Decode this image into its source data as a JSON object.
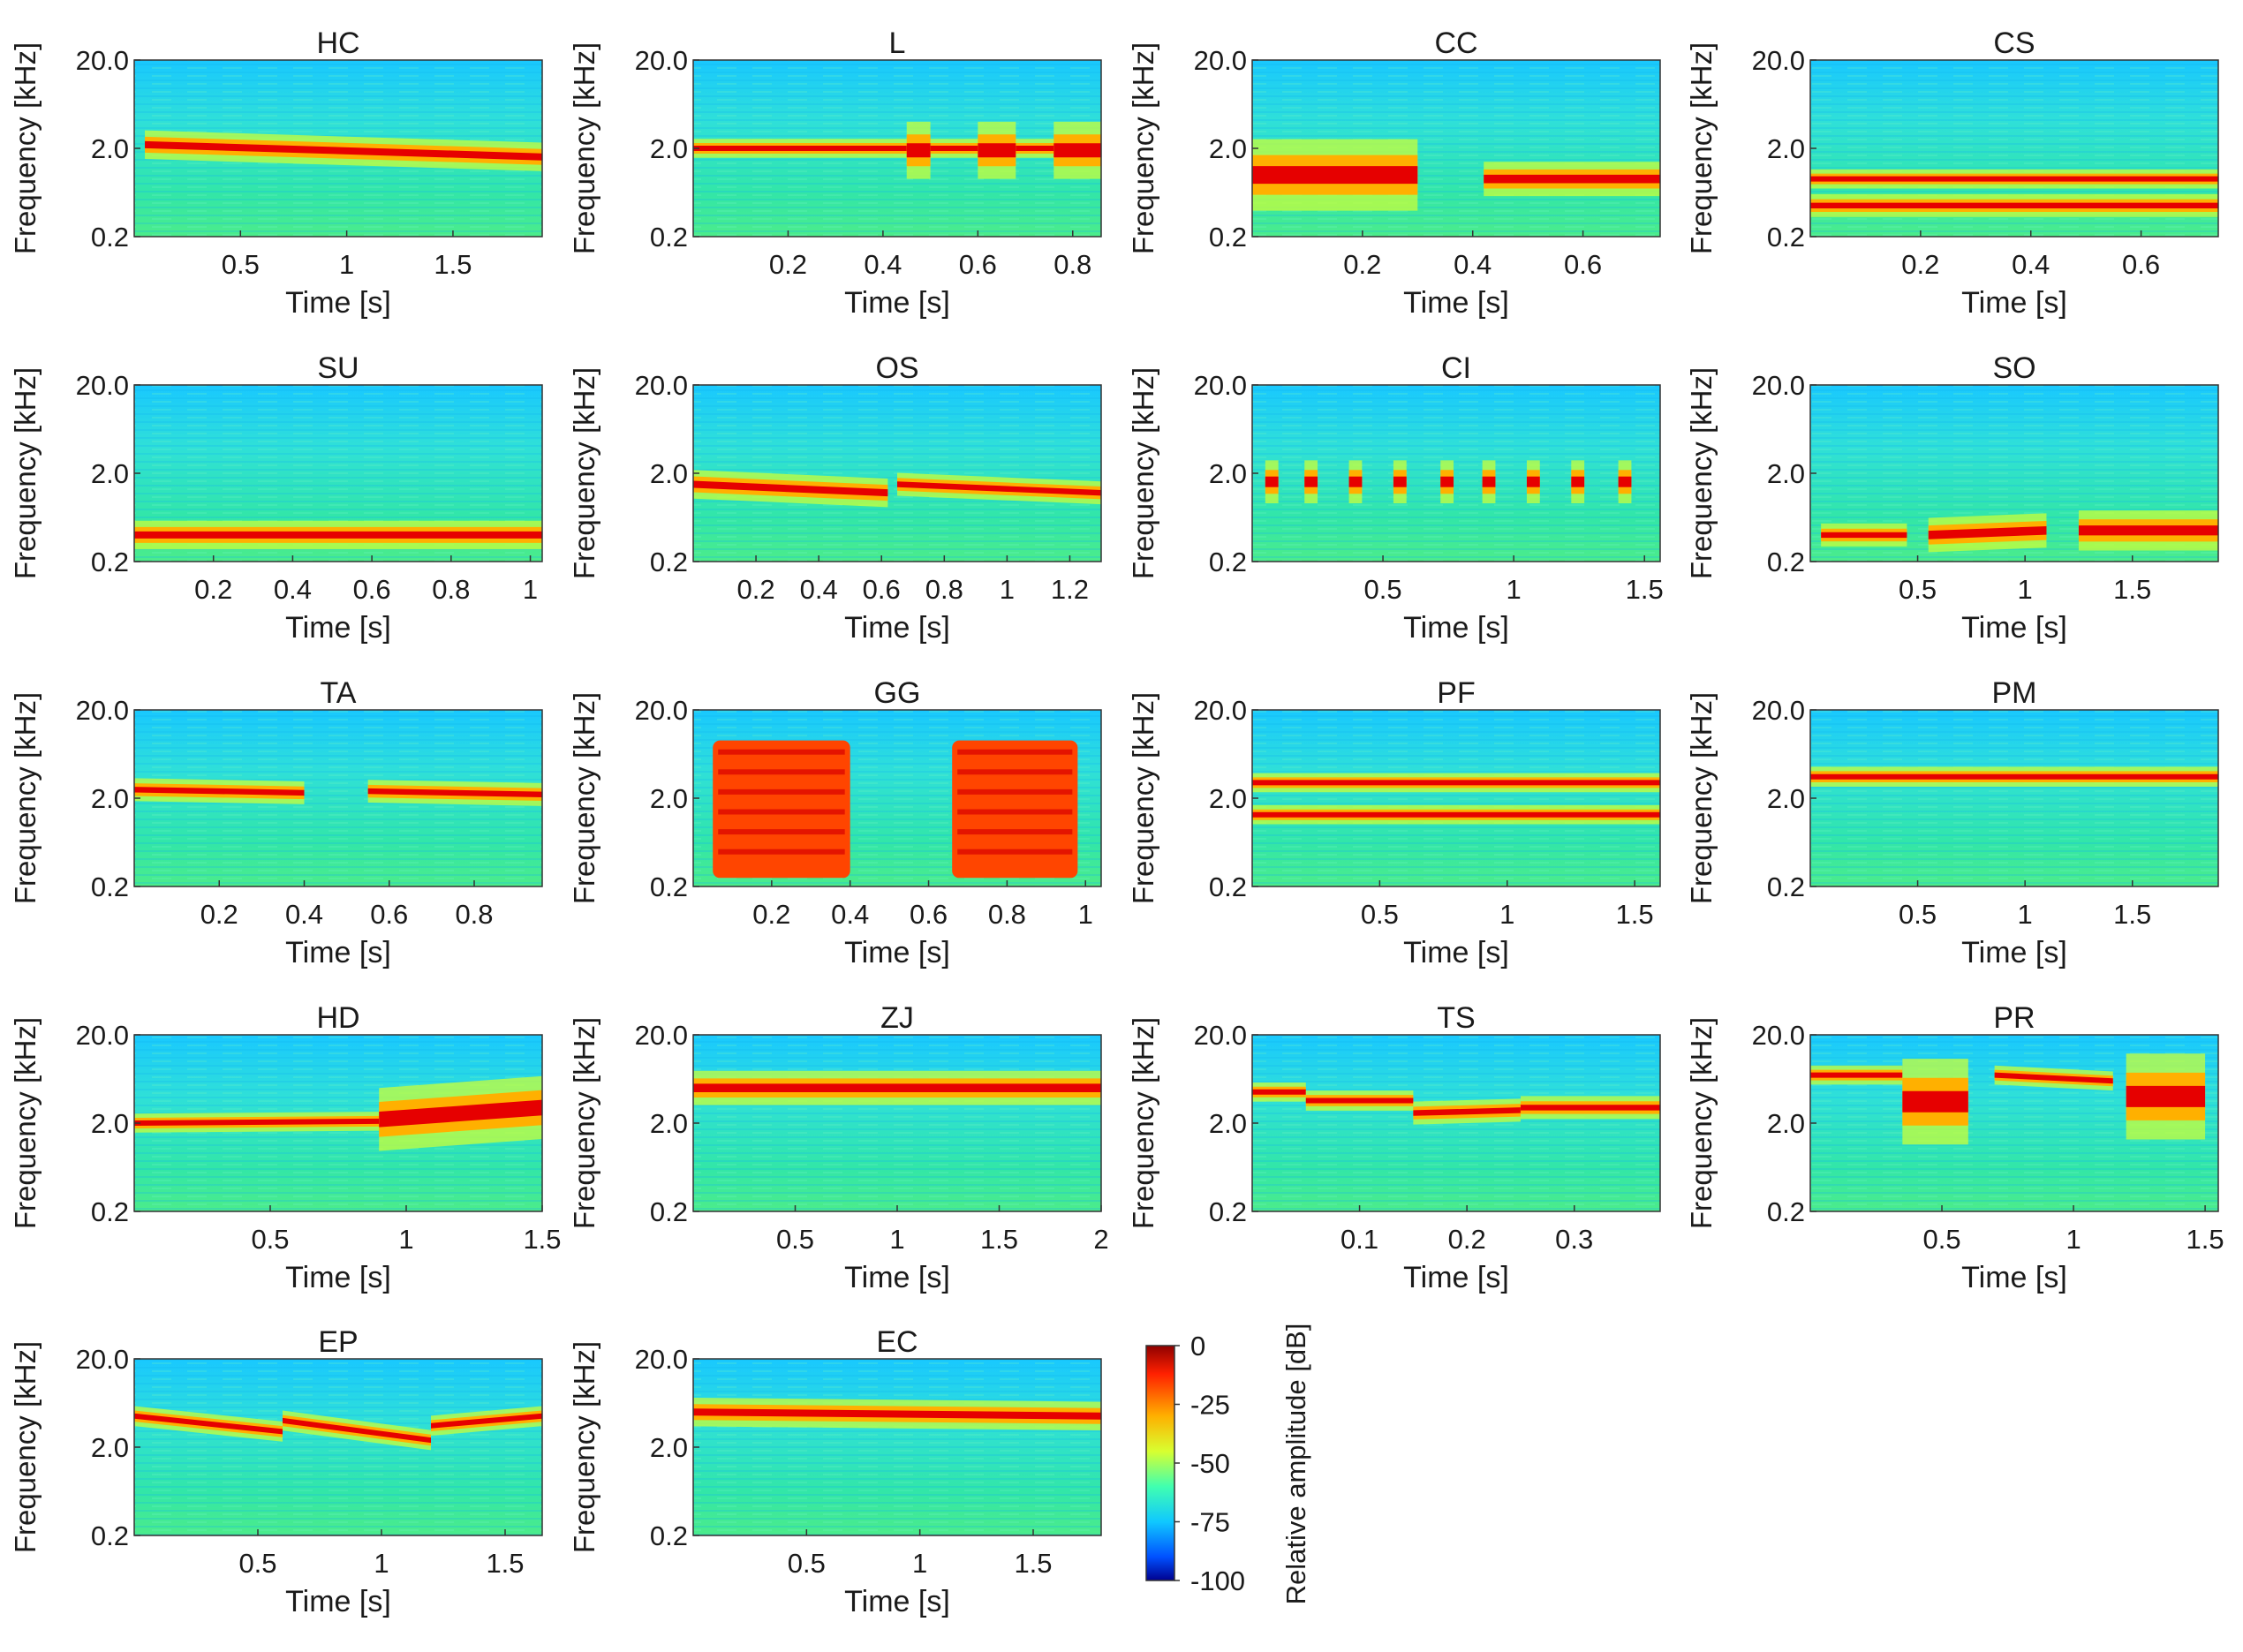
{
  "figure": {
    "type": "spectrogram_grid",
    "colorbar": {
      "label": "Relative amplitude [dB]",
      "ticks": [
        "0",
        "-25",
        "-50",
        "-75",
        "-100"
      ],
      "values": [
        0,
        -25,
        -50,
        -75,
        -100
      ],
      "range": [
        -100,
        0
      ],
      "colormap": [
        "#00008f",
        "#0040ff",
        "#00c0ff",
        "#40ffc0",
        "#c0ff40",
        "#ffc000",
        "#ff4000",
        "#8f0000"
      ]
    }
  },
  "chart_data": [
    {
      "type": "heatmap",
      "title": "HC",
      "xlabel": "Time [s]",
      "ylabel": "Frequency [kHz]",
      "xlim": [
        0,
        1.92
      ],
      "xticks": [
        0.5,
        1,
        1.5
      ],
      "xtick_labels": [
        "0.5",
        "1",
        "1.5"
      ],
      "ylim": [
        0.2,
        20
      ],
      "ytick_labels": [
        "20.0",
        "2.0",
        "0.2"
      ],
      "yticks": [
        20,
        2,
        0.2
      ],
      "bands": [
        {
          "t0": 0.05,
          "t1": 1.92,
          "f0": 2.2,
          "f1": 1.6,
          "width": 0.1
        }
      ]
    },
    {
      "type": "heatmap",
      "title": "L",
      "xlabel": "Time [s]",
      "ylabel": "Frequency [kHz]",
      "xlim": [
        0,
        0.86
      ],
      "xticks": [
        0.2,
        0.4,
        0.6,
        0.8
      ],
      "xtick_labels": [
        "0.2",
        "0.4",
        "0.6",
        "0.8"
      ],
      "ylim": [
        0.2,
        20
      ],
      "ytick_labels": [
        "20.0",
        "2.0",
        "0.2"
      ],
      "yticks": [
        20,
        2,
        0.2
      ],
      "bands": [
        {
          "t0": 0.0,
          "t1": 0.86,
          "f0": 2.0,
          "f1": 2.0,
          "width": 0.06
        },
        {
          "t0": 0.45,
          "t1": 0.5,
          "f0": 1.9,
          "f1": 1.9,
          "width": 0.2
        },
        {
          "t0": 0.6,
          "t1": 0.68,
          "f0": 1.9,
          "f1": 1.9,
          "width": 0.2
        },
        {
          "t0": 0.76,
          "t1": 0.86,
          "f0": 1.9,
          "f1": 1.9,
          "width": 0.2
        }
      ]
    },
    {
      "type": "heatmap",
      "title": "CC",
      "xlabel": "Time [s]",
      "ylabel": "Frequency [kHz]",
      "xlim": [
        0,
        0.74
      ],
      "xticks": [
        0.2,
        0.4,
        0.6
      ],
      "xtick_labels": [
        "0.2",
        "0.4",
        "0.6"
      ],
      "ylim": [
        0.2,
        20
      ],
      "ytick_labels": [
        "20.0",
        "2.0",
        "0.2"
      ],
      "yticks": [
        20,
        2,
        0.2
      ],
      "bands": [
        {
          "t0": 0.0,
          "t1": 0.3,
          "f0": 1.0,
          "f1": 1.0,
          "width": 0.25
        },
        {
          "t0": 0.42,
          "t1": 0.74,
          "f0": 0.9,
          "f1": 0.9,
          "width": 0.12
        }
      ]
    },
    {
      "type": "heatmap",
      "title": "CS",
      "xlabel": "Time [s]",
      "ylabel": "Frequency [kHz]",
      "xlim": [
        0,
        0.74
      ],
      "xticks": [
        0.2,
        0.4,
        0.6
      ],
      "xtick_labels": [
        "0.2",
        "0.4",
        "0.6"
      ],
      "ylim": [
        0.2,
        20
      ],
      "ytick_labels": [
        "20.0",
        "2.0",
        "0.2"
      ],
      "yticks": [
        20,
        2,
        0.2
      ],
      "bands": [
        {
          "t0": 0.0,
          "t1": 0.74,
          "f0": 0.45,
          "f1": 0.45,
          "width": 0.08
        },
        {
          "t0": 0.0,
          "t1": 0.74,
          "f0": 0.9,
          "f1": 0.9,
          "width": 0.05
        }
      ]
    },
    {
      "type": "heatmap",
      "title": "SU",
      "xlabel": "Time [s]",
      "ylabel": "Frequency [kHz]",
      "xlim": [
        0,
        1.03
      ],
      "xticks": [
        0.2,
        0.4,
        0.6,
        0.8,
        1
      ],
      "xtick_labels": [
        "0.2",
        "0.4",
        "0.6",
        "0.8",
        "1"
      ],
      "ylim": [
        0.2,
        20
      ],
      "ytick_labels": [
        "20.0",
        "2.0",
        "0.2"
      ],
      "yticks": [
        20,
        2,
        0.2
      ],
      "bands": [
        {
          "t0": 0.0,
          "t1": 1.03,
          "f0": 0.4,
          "f1": 0.4,
          "width": 0.1
        }
      ]
    },
    {
      "type": "heatmap",
      "title": "OS",
      "xlabel": "Time [s]",
      "ylabel": "Frequency [kHz]",
      "xlim": [
        0,
        1.3
      ],
      "xticks": [
        0.2,
        0.4,
        0.6,
        0.8,
        1,
        1.2
      ],
      "xtick_labels": [
        "0.2",
        "0.4",
        "0.6",
        "0.8",
        "1",
        "1.2"
      ],
      "ylim": [
        0.2,
        20
      ],
      "ytick_labels": [
        "20.0",
        "2.0",
        "0.2"
      ],
      "yticks": [
        20,
        2,
        0.2
      ],
      "bands": [
        {
          "t0": 0.0,
          "t1": 0.62,
          "f0": 1.5,
          "f1": 1.2,
          "width": 0.1
        },
        {
          "t0": 0.65,
          "t1": 1.3,
          "f0": 1.5,
          "f1": 1.2,
          "width": 0.08
        }
      ]
    },
    {
      "type": "heatmap",
      "title": "CI",
      "xlabel": "Time [s]",
      "ylabel": "Frequency [kHz]",
      "xlim": [
        0,
        1.56
      ],
      "xticks": [
        0.5,
        1,
        1.5
      ],
      "xtick_labels": [
        "0.5",
        "1",
        "1.5"
      ],
      "ylim": [
        0.2,
        20
      ],
      "ytick_labels": [
        "20.0",
        "2.0",
        "0.2"
      ],
      "yticks": [
        20,
        2,
        0.2
      ],
      "bands": [
        {
          "t0": 0.05,
          "t1": 0.1,
          "f0": 1.6,
          "f1": 1.6,
          "width": 0.15
        },
        {
          "t0": 0.2,
          "t1": 0.25,
          "f0": 1.6,
          "f1": 1.6,
          "width": 0.15
        },
        {
          "t0": 0.37,
          "t1": 0.42,
          "f0": 1.6,
          "f1": 1.6,
          "width": 0.15
        },
        {
          "t0": 0.54,
          "t1": 0.59,
          "f0": 1.6,
          "f1": 1.6,
          "width": 0.15
        },
        {
          "t0": 0.72,
          "t1": 0.77,
          "f0": 1.6,
          "f1": 1.6,
          "width": 0.15
        },
        {
          "t0": 0.88,
          "t1": 0.93,
          "f0": 1.6,
          "f1": 1.6,
          "width": 0.15
        },
        {
          "t0": 1.05,
          "t1": 1.1,
          "f0": 1.6,
          "f1": 1.6,
          "width": 0.15
        },
        {
          "t0": 1.22,
          "t1": 1.27,
          "f0": 1.6,
          "f1": 1.6,
          "width": 0.15
        },
        {
          "t0": 1.4,
          "t1": 1.45,
          "f0": 1.6,
          "f1": 1.6,
          "width": 0.15
        }
      ]
    },
    {
      "type": "heatmap",
      "title": "SO",
      "xlabel": "Time [s]",
      "ylabel": "Frequency [kHz]",
      "xlim": [
        0,
        1.9
      ],
      "xticks": [
        0.5,
        1,
        1.5
      ],
      "xtick_labels": [
        "0.5",
        "1",
        "1.5"
      ],
      "ylim": [
        0.2,
        20
      ],
      "ytick_labels": [
        "20.0",
        "2.0",
        "0.2"
      ],
      "yticks": [
        20,
        2,
        0.2
      ],
      "bands": [
        {
          "t0": 0.05,
          "t1": 0.45,
          "f0": 0.4,
          "f1": 0.4,
          "width": 0.08
        },
        {
          "t0": 0.55,
          "t1": 1.1,
          "f0": 0.4,
          "f1": 0.45,
          "width": 0.12
        },
        {
          "t0": 1.25,
          "t1": 1.9,
          "f0": 0.45,
          "f1": 0.45,
          "width": 0.14
        }
      ]
    },
    {
      "type": "heatmap",
      "title": "TA",
      "xlabel": "Time [s]",
      "ylabel": "Frequency [kHz]",
      "xlim": [
        0,
        0.96
      ],
      "xticks": [
        0.2,
        0.4,
        0.6,
        0.8
      ],
      "xtick_labels": [
        "0.2",
        "0.4",
        "0.6",
        "0.8"
      ],
      "ylim": [
        0.2,
        20
      ],
      "ytick_labels": [
        "20.0",
        "2.0",
        "0.2"
      ],
      "yticks": [
        20,
        2,
        0.2
      ],
      "bands": [
        {
          "t0": 0.0,
          "t1": 0.4,
          "f0": 2.5,
          "f1": 2.3,
          "width": 0.08
        },
        {
          "t0": 0.55,
          "t1": 0.96,
          "f0": 2.4,
          "f1": 2.2,
          "width": 0.08
        }
      ]
    },
    {
      "type": "heatmap",
      "title": "GG",
      "xlabel": "Time [s]",
      "ylabel": "Frequency [kHz]",
      "xlim": [
        0,
        1.04
      ],
      "xticks": [
        0.2,
        0.4,
        0.6,
        0.8,
        1
      ],
      "xtick_labels": [
        "0.2",
        "0.4",
        "0.6",
        "0.8",
        "1"
      ],
      "ylim": [
        0.2,
        20
      ],
      "ytick_labels": [
        "20.0",
        "2.0",
        "0.2"
      ],
      "yticks": [
        20,
        2,
        0.2
      ],
      "blocks": [
        {
          "t0": 0.05,
          "t1": 0.4,
          "f0": 0.25,
          "f1": 9.0
        },
        {
          "t0": 0.66,
          "t1": 0.98,
          "f0": 0.25,
          "f1": 9.0
        }
      ]
    },
    {
      "type": "heatmap",
      "title": "PF",
      "xlabel": "Time [s]",
      "ylabel": "Frequency [kHz]",
      "xlim": [
        0,
        1.6
      ],
      "xticks": [
        0.5,
        1,
        1.5
      ],
      "xtick_labels": [
        "0.5",
        "1",
        "1.5"
      ],
      "ylim": [
        0.2,
        20
      ],
      "ytick_labels": [
        "20.0",
        "2.0",
        "0.2"
      ],
      "yticks": [
        20,
        2,
        0.2
      ],
      "bands": [
        {
          "t0": 0.0,
          "t1": 1.6,
          "f0": 1.3,
          "f1": 1.3,
          "width": 0.06
        },
        {
          "t0": 0.0,
          "t1": 1.6,
          "f0": 3.0,
          "f1": 3.0,
          "width": 0.04
        }
      ]
    },
    {
      "type": "heatmap",
      "title": "PM",
      "xlabel": "Time [s]",
      "ylabel": "Frequency [kHz]",
      "xlim": [
        0,
        1.9
      ],
      "xticks": [
        0.5,
        1,
        1.5
      ],
      "xtick_labels": [
        "0.5",
        "1",
        "1.5"
      ],
      "ylim": [
        0.2,
        20
      ],
      "ytick_labels": [
        "20.0",
        "2.0",
        "0.2"
      ],
      "yticks": [
        20,
        2,
        0.2
      ],
      "bands": [
        {
          "t0": 0.0,
          "t1": 1.9,
          "f0": 3.5,
          "f1": 3.5,
          "width": 0.07
        }
      ]
    },
    {
      "type": "heatmap",
      "title": "HD",
      "xlabel": "Time [s]",
      "ylabel": "Frequency [kHz]",
      "xlim": [
        0,
        1.5
      ],
      "xticks": [
        0.5,
        1,
        1.5
      ],
      "xtick_labels": [
        "0.5",
        "1",
        "1.5"
      ],
      "ylim": [
        0.2,
        20
      ],
      "ytick_labels": [
        "20.0",
        "2.0",
        "0.2"
      ],
      "yticks": [
        20,
        2,
        0.2
      ],
      "bands": [
        {
          "t0": 0.0,
          "t1": 0.9,
          "f0": 2.0,
          "f1": 2.1,
          "width": 0.05
        },
        {
          "t0": 0.9,
          "t1": 1.5,
          "f0": 2.2,
          "f1": 3.0,
          "width": 0.22
        }
      ]
    },
    {
      "type": "heatmap",
      "title": "ZJ",
      "xlabel": "Time [s]",
      "ylabel": "Frequency [kHz]",
      "xlim": [
        0,
        2.0
      ],
      "xticks": [
        0.5,
        1,
        1.5,
        2
      ],
      "xtick_labels": [
        "0.5",
        "1",
        "1.5",
        "2"
      ],
      "ylim": [
        0.2,
        20
      ],
      "ytick_labels": [
        "20.0",
        "2.0",
        "0.2"
      ],
      "yticks": [
        20,
        2,
        0.2
      ],
      "bands": [
        {
          "t0": 0.0,
          "t1": 2.0,
          "f0": 5.0,
          "f1": 5.0,
          "width": 0.12
        }
      ]
    },
    {
      "type": "heatmap",
      "title": "TS",
      "xlabel": "Time [s]",
      "ylabel": "Frequency [kHz]",
      "xlim": [
        0,
        0.38
      ],
      "xticks": [
        0.1,
        0.2,
        0.3
      ],
      "xtick_labels": [
        "0.1",
        "0.2",
        "0.3"
      ],
      "ylim": [
        0.2,
        20
      ],
      "ytick_labels": [
        "20.0",
        "2.0",
        "0.2"
      ],
      "yticks": [
        20,
        2,
        0.2
      ],
      "bands": [
        {
          "t0": 0.0,
          "t1": 0.05,
          "f0": 4.5,
          "f1": 4.5,
          "width": 0.06
        },
        {
          "t0": 0.05,
          "t1": 0.15,
          "f0": 3.6,
          "f1": 3.6,
          "width": 0.07
        },
        {
          "t0": 0.15,
          "t1": 0.25,
          "f0": 2.6,
          "f1": 2.8,
          "width": 0.08
        },
        {
          "t0": 0.25,
          "t1": 0.38,
          "f0": 3.0,
          "f1": 3.0,
          "width": 0.08
        }
      ]
    },
    {
      "type": "heatmap",
      "title": "PR",
      "xlabel": "Time [s]",
      "ylabel": "Frequency [kHz]",
      "xlim": [
        0,
        1.55
      ],
      "xticks": [
        0.5,
        1,
        1.5
      ],
      "xtick_labels": [
        "0.5",
        "1",
        "1.5"
      ],
      "ylim": [
        0.2,
        20
      ],
      "ytick_labels": [
        "20.0",
        "2.0",
        "0.2"
      ],
      "yticks": [
        20,
        2,
        0.2
      ],
      "bands": [
        {
          "t0": 0.0,
          "t1": 0.35,
          "f0": 7.0,
          "f1": 7.0,
          "width": 0.06
        },
        {
          "t0": 0.35,
          "t1": 0.6,
          "f0": 3.5,
          "f1": 3.5,
          "width": 0.3
        },
        {
          "t0": 0.7,
          "t1": 1.15,
          "f0": 7.0,
          "f1": 6.0,
          "width": 0.06
        },
        {
          "t0": 1.2,
          "t1": 1.5,
          "f0": 4.0,
          "f1": 4.0,
          "width": 0.3
        }
      ]
    },
    {
      "type": "heatmap",
      "title": "EP",
      "xlabel": "Time [s]",
      "ylabel": "Frequency [kHz]",
      "xlim": [
        0,
        1.65
      ],
      "xticks": [
        0.5,
        1,
        1.5
      ],
      "xtick_labels": [
        "0.5",
        "1",
        "1.5"
      ],
      "ylim": [
        0.2,
        20
      ],
      "ytick_labels": [
        "20.0",
        "2.0",
        "0.2"
      ],
      "yticks": [
        20,
        2,
        0.2
      ],
      "bands": [
        {
          "t0": 0.0,
          "t1": 0.6,
          "f0": 4.5,
          "f1": 3.0,
          "width": 0.07
        },
        {
          "t0": 0.6,
          "t1": 1.2,
          "f0": 4.0,
          "f1": 2.4,
          "width": 0.07
        },
        {
          "t0": 1.2,
          "t1": 1.65,
          "f0": 3.5,
          "f1": 4.5,
          "width": 0.07
        }
      ]
    },
    {
      "type": "heatmap",
      "title": "EC",
      "xlabel": "Time [s]",
      "ylabel": "Frequency [kHz]",
      "xlim": [
        0,
        1.8
      ],
      "xticks": [
        0.5,
        1,
        1.5
      ],
      "xtick_labels": [
        "0.5",
        "1",
        "1.5"
      ],
      "ylim": [
        0.2,
        20
      ],
      "ytick_labels": [
        "20.0",
        "2.0",
        "0.2"
      ],
      "yticks": [
        20,
        2,
        0.2
      ],
      "bands": [
        {
          "t0": 0.0,
          "t1": 1.8,
          "f0": 5.0,
          "f1": 4.5,
          "width": 0.1
        }
      ]
    }
  ]
}
